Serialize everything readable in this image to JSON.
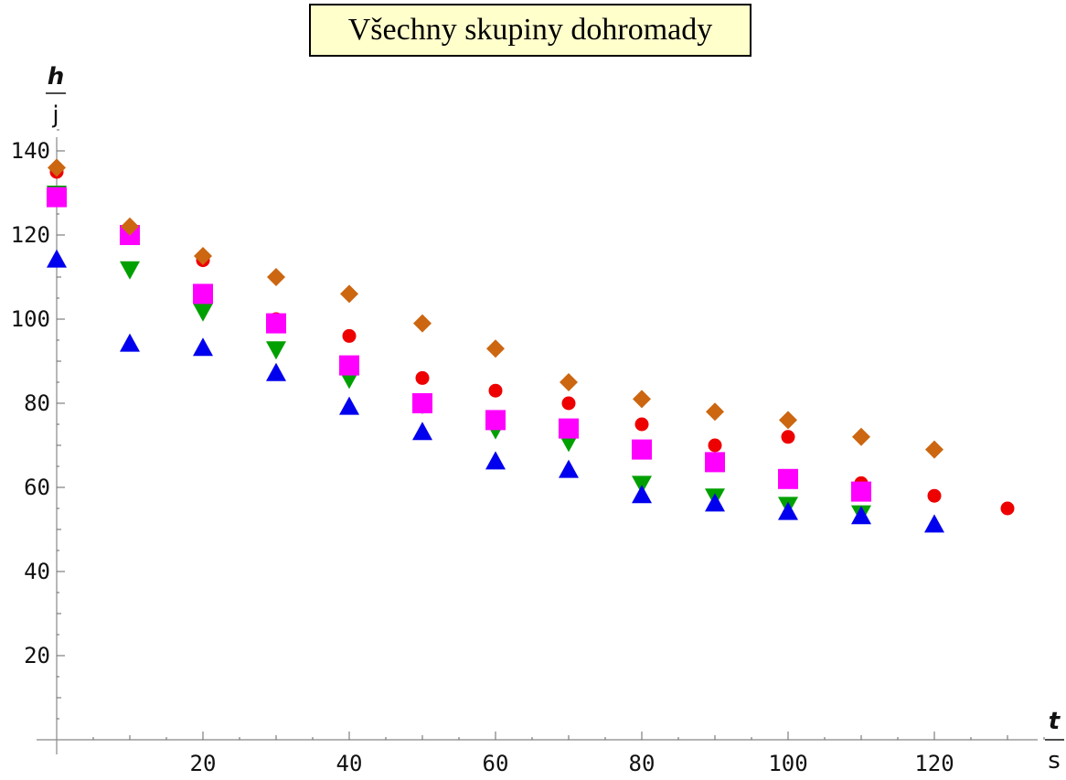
{
  "chart_data": {
    "type": "scatter",
    "title": "Všechny skupiny dohromady",
    "xlabel": {
      "numerator": "t",
      "denominator": "s"
    },
    "ylabel": {
      "numerator": "h",
      "denominator": "j"
    },
    "xlim": [
      0,
      135
    ],
    "ylim": [
      0,
      140
    ],
    "xticks": [
      20,
      40,
      60,
      80,
      100,
      120
    ],
    "yticks": [
      20,
      40,
      60,
      80,
      100,
      120,
      140
    ],
    "grid": false,
    "legend": "none",
    "series": [
      {
        "marker": "circle",
        "color": "#ee0000",
        "x": [
          0,
          10,
          20,
          30,
          40,
          50,
          60,
          70,
          80,
          90,
          100,
          110,
          120,
          130
        ],
        "y": [
          135,
          120,
          114,
          100,
          96,
          86,
          83,
          80,
          75,
          70,
          72,
          61,
          58,
          55
        ]
      },
      {
        "marker": "triangle-down",
        "color": "#00a000",
        "x": [
          0,
          10,
          20,
          30,
          40,
          50,
          60,
          70,
          80,
          90,
          100,
          110
        ],
        "y": [
          130,
          112,
          102,
          93,
          86,
          80,
          74,
          71,
          61,
          58,
          56,
          54
        ]
      },
      {
        "marker": "triangle-up",
        "color": "#0000ee",
        "x": [
          0,
          10,
          20,
          30,
          40,
          50,
          60,
          70,
          80,
          90,
          100,
          110,
          120
        ],
        "y": [
          114,
          94,
          93,
          87,
          79,
          73,
          66,
          64,
          58,
          56,
          54,
          53,
          51
        ]
      },
      {
        "marker": "square",
        "color": "#ff00ff",
        "x": [
          0,
          10,
          20,
          30,
          40,
          50,
          60,
          70,
          80,
          90,
          100,
          110
        ],
        "y": [
          129,
          120,
          106,
          99,
          89,
          80,
          76,
          74,
          69,
          66,
          62,
          59
        ]
      },
      {
        "marker": "diamond",
        "color": "#cc6611",
        "x": [
          0,
          10,
          20,
          30,
          40,
          50,
          60,
          70,
          80,
          90,
          100,
          110,
          120
        ],
        "y": [
          136,
          122,
          115,
          110,
          106,
          99,
          93,
          85,
          81,
          78,
          76,
          72,
          69
        ]
      }
    ]
  }
}
